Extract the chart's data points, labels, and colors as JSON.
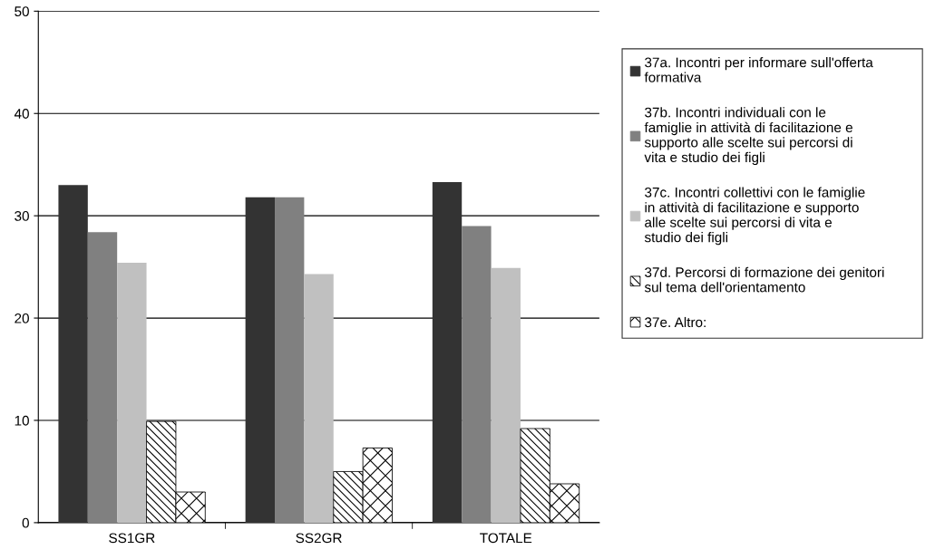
{
  "chart_data": {
    "type": "bar",
    "categories": [
      "SS1GR",
      "SS2GR",
      "TOTALE"
    ],
    "series": [
      {
        "name": "37a. Incontri per informare sull'offerta formativa",
        "color": "#333333",
        "values": [
          33.0,
          31.8,
          33.3
        ]
      },
      {
        "name": "37b. Incontri individuali con le famiglie in attività di facilitazione e supporto alle scelte sui percorsi di vita e studio dei figli",
        "color": "#808080",
        "values": [
          28.4,
          31.8,
          29.0
        ]
      },
      {
        "name": "37c. Incontri collettivi con le famiglie in attività di facilitazione e supporto alle scelte sui percorsi di vita e studio dei figli",
        "color": "#c0c0c0",
        "values": [
          25.4,
          24.3,
          24.9
        ]
      },
      {
        "name": "37d. Percorsi di formazione dei genitori sul tema dell'orientamento",
        "color": "#000000",
        "values": [
          9.9,
          5.0,
          9.2
        ]
      },
      {
        "name": "37e. Altro:",
        "color": "#000000",
        "values": [
          3.0,
          7.3,
          3.8
        ]
      }
    ],
    "ylim": [
      0,
      50
    ],
    "yticks": [
      0,
      10,
      20,
      30,
      40,
      50
    ],
    "grid": "y",
    "legend": "right"
  }
}
